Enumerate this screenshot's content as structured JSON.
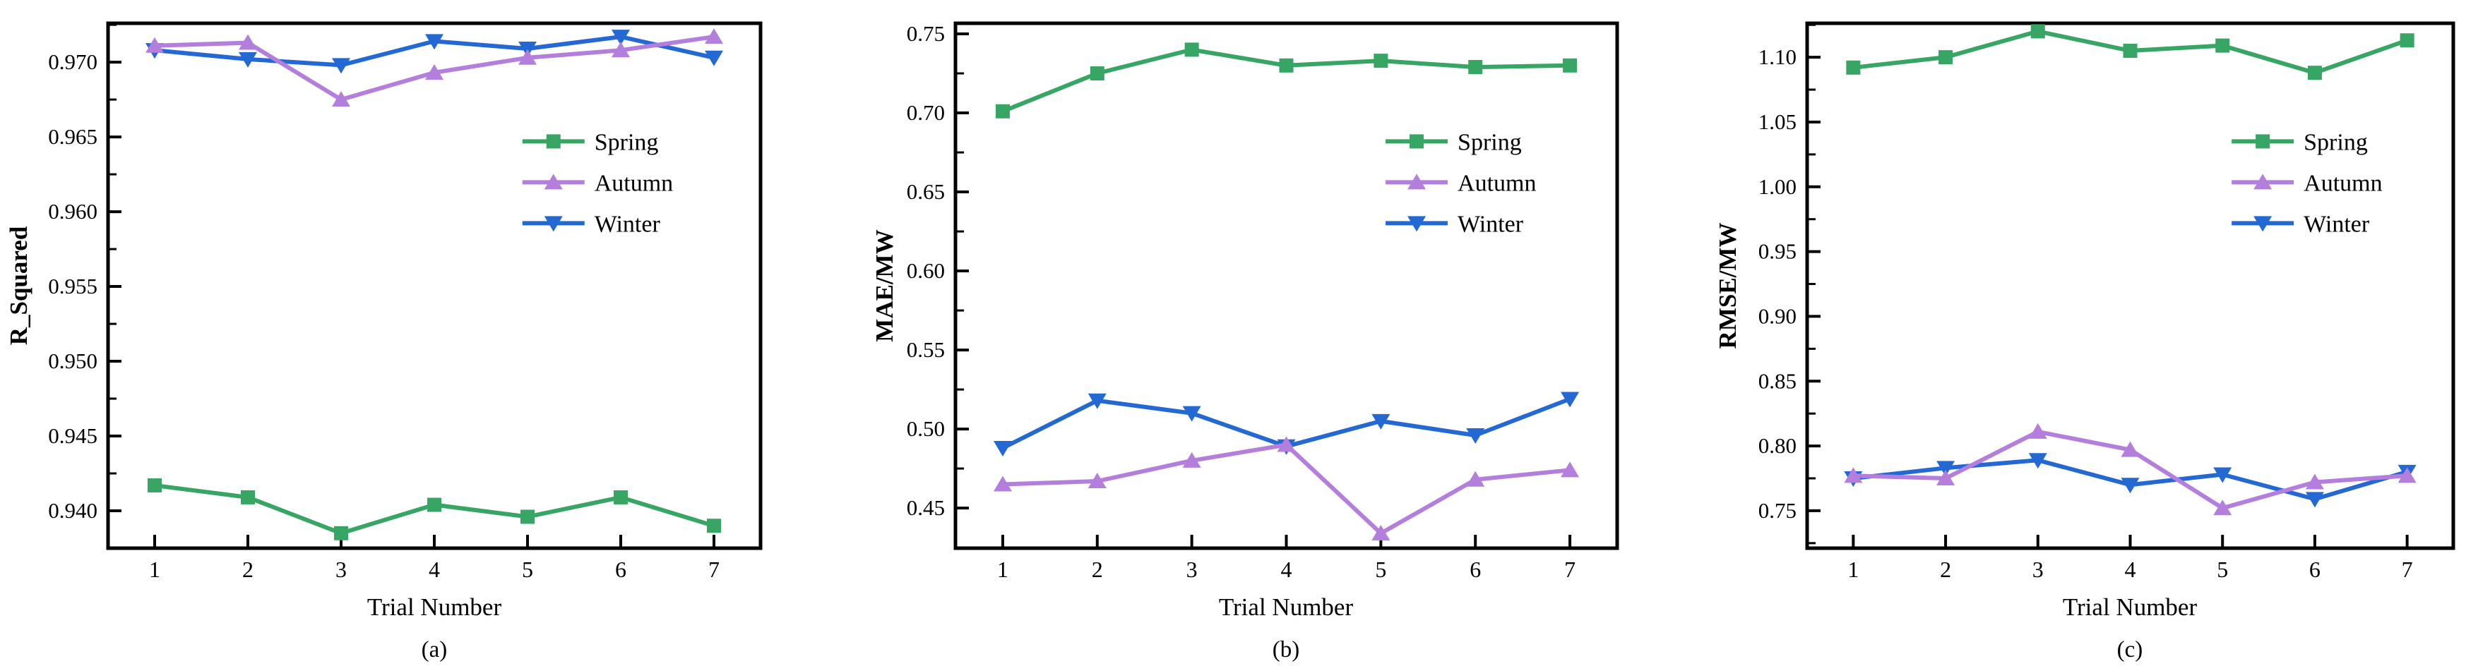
{
  "figure": {
    "background": "#ffffff",
    "axis_color": "#000000",
    "text_color": "#000000"
  },
  "colors": {
    "spring": "#37A563",
    "autumn": "#B37EDC",
    "winter": "#2469D3"
  },
  "chart_data": [
    {
      "id": "a",
      "type": "line",
      "caption": "(a)",
      "xlabel": "Trial Number",
      "ylabel": "R_Squared",
      "x": [
        1,
        2,
        3,
        4,
        5,
        6,
        7
      ],
      "xlim": [
        0.5,
        7.5
      ],
      "ylim": [
        0.9375,
        0.9726
      ],
      "xticks": {
        "values": [
          1,
          2,
          3,
          4,
          5,
          6,
          7
        ],
        "labels": [
          "1",
          "2",
          "3",
          "4",
          "5",
          "6",
          "7"
        ]
      },
      "yticks": {
        "values": [
          0.94,
          0.945,
          0.95,
          0.955,
          0.96,
          0.965,
          0.97
        ],
        "labels": [
          "0.940",
          "0.945",
          "0.950",
          "0.955",
          "0.960",
          "0.965",
          "0.970"
        ]
      },
      "grid": false,
      "legend_position": "upper-right-inside",
      "series": [
        {
          "name": "Spring",
          "color_key": "spring",
          "marker": "square",
          "values": [
            0.9417,
            0.9409,
            0.9385,
            0.9404,
            0.9396,
            0.9409,
            0.939
          ]
        },
        {
          "name": "Autumn",
          "color_key": "autumn",
          "marker": "triangle-up",
          "values": [
            0.9711,
            0.9713,
            0.9675,
            0.9693,
            0.9703,
            0.9708,
            0.9717
          ]
        },
        {
          "name": "Winter",
          "color_key": "winter",
          "marker": "triangle-down",
          "values": [
            0.9708,
            0.9702,
            0.9698,
            0.9714,
            0.9709,
            0.9717,
            0.9703
          ]
        }
      ]
    },
    {
      "id": "b",
      "type": "line",
      "caption": "(b)",
      "xlabel": "Trial Number",
      "ylabel": "MAE/MW",
      "x": [
        1,
        2,
        3,
        4,
        5,
        6,
        7
      ],
      "xlim": [
        0.5,
        7.5
      ],
      "ylim": [
        0.4246,
        0.7567
      ],
      "xticks": {
        "values": [
          1,
          2,
          3,
          4,
          5,
          6,
          7
        ],
        "labels": [
          "1",
          "2",
          "3",
          "4",
          "5",
          "6",
          "7"
        ]
      },
      "yticks": {
        "values": [
          0.45,
          0.5,
          0.55,
          0.6,
          0.65,
          0.7,
          0.75
        ],
        "labels": [
          "0.45",
          "0.50",
          "0.55",
          "0.60",
          "0.65",
          "0.70",
          "0.75"
        ]
      },
      "grid": false,
      "legend_position": "upper-right-inside",
      "series": [
        {
          "name": "Spring",
          "color_key": "spring",
          "marker": "square",
          "values": [
            0.701,
            0.725,
            0.74,
            0.73,
            0.733,
            0.729,
            0.73
          ]
        },
        {
          "name": "Autumn",
          "color_key": "autumn",
          "marker": "triangle-up",
          "values": [
            0.465,
            0.467,
            0.48,
            0.49,
            0.434,
            0.468,
            0.474
          ]
        },
        {
          "name": "Winter",
          "color_key": "winter",
          "marker": "triangle-down",
          "values": [
            0.488,
            0.518,
            0.51,
            0.489,
            0.505,
            0.496,
            0.519
          ]
        }
      ]
    },
    {
      "id": "c",
      "type": "line",
      "caption": "(c)",
      "xlabel": "Trial Number",
      "ylabel": "RMSE/MW",
      "x": [
        1,
        2,
        3,
        4,
        5,
        6,
        7
      ],
      "xlim": [
        0.5,
        7.5
      ],
      "ylim": [
        0.7211,
        1.1262
      ],
      "xticks": {
        "values": [
          1,
          2,
          3,
          4,
          5,
          6,
          7
        ],
        "labels": [
          "1",
          "2",
          "3",
          "4",
          "5",
          "6",
          "7"
        ]
      },
      "yticks": {
        "values": [
          0.75,
          0.8,
          0.85,
          0.9,
          0.95,
          1.0,
          1.05,
          1.1
        ],
        "labels": [
          "0.75",
          "0.80",
          "0.85",
          "0.90",
          "0.95",
          "1.00",
          "1.05",
          "1.10"
        ]
      },
      "grid": false,
      "legend_position": "upper-right-inside",
      "series": [
        {
          "name": "Spring",
          "color_key": "spring",
          "marker": "square",
          "values": [
            1.092,
            1.1,
            1.12,
            1.105,
            1.109,
            1.088,
            1.113
          ]
        },
        {
          "name": "Autumn",
          "color_key": "autumn",
          "marker": "triangle-up",
          "values": [
            0.777,
            0.775,
            0.811,
            0.797,
            0.752,
            0.772,
            0.777
          ]
        },
        {
          "name": "Winter",
          "color_key": "winter",
          "marker": "triangle-down",
          "values": [
            0.775,
            0.783,
            0.789,
            0.77,
            0.778,
            0.759,
            0.78
          ]
        }
      ]
    }
  ]
}
